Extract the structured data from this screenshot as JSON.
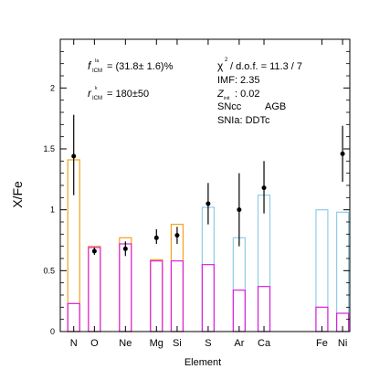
{
  "chart_data": {
    "type": "bar",
    "xlabel": "Element",
    "ylabel": "X/Fe",
    "ylim": [
      0,
      2.4
    ],
    "yticks": [
      0,
      0.5,
      1,
      1.5,
      2
    ],
    "ytick_labels": [
      "0",
      "0.5",
      "1",
      "1.5",
      "2"
    ],
    "categories": [
      "N",
      "O",
      "Ne",
      "Mg",
      "Si",
      "S",
      "Ar",
      "Ca",
      "Fe",
      "Ni"
    ],
    "bars": [
      {
        "element": "N",
        "sncc": 0.23,
        "agb": 1.41,
        "snia": 1.41
      },
      {
        "element": "O",
        "sncc": 0.69,
        "agb": 0.7,
        "snia": 0.7
      },
      {
        "element": "Ne",
        "sncc": 0.72,
        "agb": 0.77,
        "snia": 0.77
      },
      {
        "element": "Mg",
        "sncc": 0.58,
        "agb": 0.59,
        "snia": 0.59
      },
      {
        "element": "Si",
        "sncc": 0.58,
        "agb": 0.88,
        "snia": 0.88
      },
      {
        "element": "S",
        "sncc": 0.55,
        "agb": 0.55,
        "snia": 1.02
      },
      {
        "element": "Ar",
        "sncc": 0.34,
        "agb": 0.34,
        "snia": 0.77
      },
      {
        "element": "Ca",
        "sncc": 0.37,
        "agb": 0.37,
        "snia": 1.12
      },
      {
        "element": "Fe",
        "sncc": 0.2,
        "agb": 0.2,
        "snia": 1.0
      },
      {
        "element": "Ni",
        "sncc": 0.15,
        "agb": 0.15,
        "snia": 0.98
      }
    ],
    "points": [
      {
        "element": "N",
        "value": 1.44,
        "err_low": 0.32,
        "err_high": 0.34
      },
      {
        "element": "O",
        "value": 0.66,
        "err_low": 0.03,
        "err_high": 0.03
      },
      {
        "element": "Ne",
        "value": 0.68,
        "err_low": 0.06,
        "err_high": 0.06
      },
      {
        "element": "Mg",
        "value": 0.77,
        "err_low": 0.05,
        "err_high": 0.07
      },
      {
        "element": "Si",
        "value": 0.79,
        "err_low": 0.07,
        "err_high": 0.07
      },
      {
        "element": "S",
        "value": 1.05,
        "err_low": 0.17,
        "err_high": 0.17
      },
      {
        "element": "Ar",
        "value": 1.0,
        "err_low": 0.3,
        "err_high": 0.3
      },
      {
        "element": "Ca",
        "value": 1.18,
        "err_low": 0.21,
        "err_high": 0.22
      },
      {
        "element": "Ni",
        "value": 1.46,
        "err_low": 0.23,
        "err_high": 0.23
      }
    ],
    "colors": {
      "sncc": "#dd1fdd",
      "agb": "#f2a21c",
      "snia": "#8fcde6"
    },
    "legend": {
      "sncc": "SNcc",
      "agb": "AGB",
      "snia": "SNIa: DDTc"
    },
    "annotations": {
      "fia_label": "f",
      "fia_sup": "Ia",
      "fia_sub": "ICM",
      "fia_value": "= (31.8± 1.6)%",
      "rk_label": "r",
      "rk_sup": "k",
      "rk_sub": "ICM",
      "rk_value": "= 180±50",
      "chi2_label": "χ",
      "chi2_sup": "2",
      "chi2_value": "/ d.o.f. = 11.3 / 7",
      "imf": "IMF: 2.35",
      "zinit_label": "Z",
      "zinit_sub": "init",
      "zinit_value": ": 0.02"
    }
  }
}
